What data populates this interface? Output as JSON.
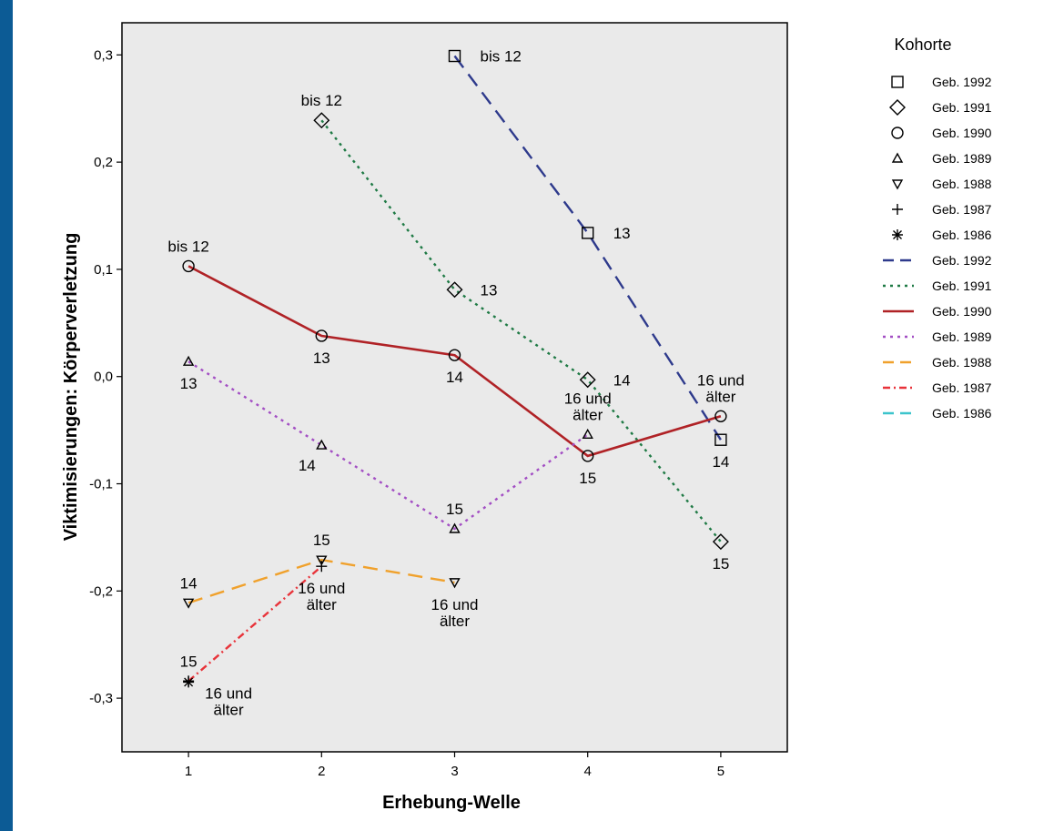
{
  "chart_data": {
    "type": "line",
    "title": "",
    "xlabel": "Erhebung-Welle",
    "ylabel": "Viktimisierungen: Körperverletzung",
    "x": [
      1,
      2,
      3,
      4,
      5
    ],
    "x_ticks": [
      "1",
      "2",
      "3",
      "4",
      "5"
    ],
    "ylim": [
      -0.35,
      0.33
    ],
    "y_ticks": [
      {
        "v": 0.3,
        "label": "0,3"
      },
      {
        "v": 0.2,
        "label": "0,2"
      },
      {
        "v": 0.1,
        "label": "0,1"
      },
      {
        "v": 0.0,
        "label": "0,0"
      },
      {
        "v": -0.1,
        "label": "-0,1"
      },
      {
        "v": -0.2,
        "label": "-0,2"
      },
      {
        "v": -0.3,
        "label": "-0,3"
      }
    ],
    "grid": false,
    "legend_title": "Kohorte",
    "legend_position": "right",
    "marker_legend": [
      {
        "name": "Geb. 1992",
        "marker": "square"
      },
      {
        "name": "Geb. 1991",
        "marker": "diamond"
      },
      {
        "name": "Geb. 1990",
        "marker": "circle"
      },
      {
        "name": "Geb. 1989",
        "marker": "triangle-up"
      },
      {
        "name": "Geb. 1988",
        "marker": "triangle-down"
      },
      {
        "name": "Geb. 1987",
        "marker": "plus"
      },
      {
        "name": "Geb. 1986",
        "marker": "star"
      }
    ],
    "series": [
      {
        "name": "Geb. 1992",
        "color": "#2e3a8c",
        "dash": "long",
        "marker": "square",
        "points": [
          {
            "x": 3,
            "y": 0.299,
            "label": "bis 12",
            "lpos": "right"
          },
          {
            "x": 4,
            "y": 0.134,
            "label": "13",
            "lpos": "right"
          },
          {
            "x": 5,
            "y": -0.059,
            "label": "14",
            "lpos": "below"
          }
        ]
      },
      {
        "name": "Geb. 1991",
        "color": "#1f7a45",
        "dash": "dot",
        "marker": "diamond",
        "points": [
          {
            "x": 2,
            "y": 0.239,
            "label": "bis 12",
            "lpos": "above"
          },
          {
            "x": 3,
            "y": 0.081,
            "label": "13",
            "lpos": "right"
          },
          {
            "x": 4,
            "y": -0.003,
            "label": "14",
            "lpos": "right"
          },
          {
            "x": 5,
            "y": -0.154,
            "label": "15",
            "lpos": "below"
          }
        ]
      },
      {
        "name": "Geb. 1990",
        "color": "#b02226",
        "dash": "solid",
        "marker": "circle",
        "points": [
          {
            "x": 1,
            "y": 0.103,
            "label": "bis 12",
            "lpos": "above"
          },
          {
            "x": 2,
            "y": 0.038,
            "label": "13",
            "lpos": "below"
          },
          {
            "x": 3,
            "y": 0.02,
            "label": "14",
            "lpos": "below"
          },
          {
            "x": 4,
            "y": -0.074,
            "label": "15",
            "lpos": "below"
          },
          {
            "x": 5,
            "y": -0.037,
            "label": "16 und\nälter",
            "lpos": "above"
          }
        ]
      },
      {
        "name": "Geb. 1989",
        "color": "#a34fc4",
        "dash": "dot",
        "marker": "triangle-up",
        "points": [
          {
            "x": 1,
            "y": 0.014,
            "label": "13",
            "lpos": "below"
          },
          {
            "x": 2,
            "y": -0.064,
            "label": "14",
            "lpos": "belowleft"
          },
          {
            "x": 3,
            "y": -0.142,
            "label": "15",
            "lpos": "above"
          },
          {
            "x": 4,
            "y": -0.054,
            "label": "16 und\nälter",
            "lpos": "above"
          }
        ]
      },
      {
        "name": "Geb. 1988",
        "color": "#f0a12c",
        "dash": "long",
        "marker": "triangle-down",
        "points": [
          {
            "x": 1,
            "y": -0.211,
            "label": "14",
            "lpos": "above"
          },
          {
            "x": 2,
            "y": -0.171,
            "label": "15",
            "lpos": "above"
          },
          {
            "x": 3,
            "y": -0.192,
            "label": "16 und\nälter",
            "lpos": "below"
          }
        ]
      },
      {
        "name": "Geb. 1987",
        "color": "#e8333a",
        "dash": "dashdot",
        "marker": "plus",
        "points": [
          {
            "x": 1,
            "y": -0.284,
            "label": "15",
            "lpos": "above"
          },
          {
            "x": 2,
            "y": -0.177,
            "label": "16 und\nälter",
            "lpos": "below"
          }
        ]
      },
      {
        "name": "Geb. 1986",
        "color": "#3cc4cc",
        "dash": "long",
        "marker": "star",
        "points": [
          {
            "x": 1,
            "y": -0.285,
            "label": "16 und\nälter",
            "lpos": "belowright"
          }
        ]
      }
    ]
  }
}
